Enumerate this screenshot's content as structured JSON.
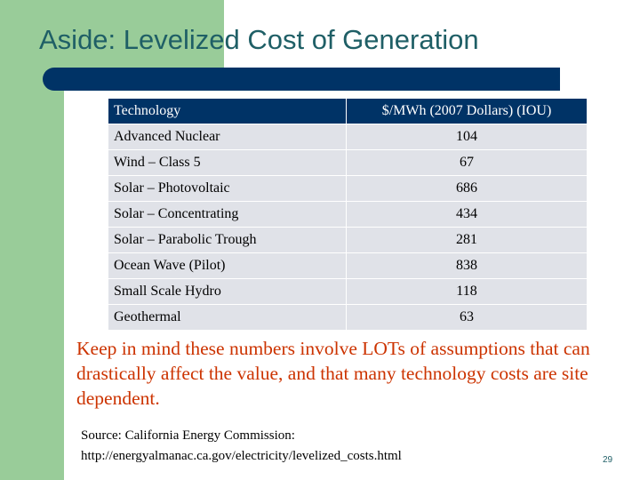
{
  "slide": {
    "title": "Aside: Levelized Cost of Generation",
    "page_number": "29"
  },
  "table": {
    "headers": [
      "Technology",
      "$/MWh (2007 Dollars) (IOU)"
    ],
    "rows": [
      [
        "Advanced Nuclear",
        "104"
      ],
      [
        "Wind – Class 5",
        "67"
      ],
      [
        "Solar – Photovoltaic",
        "686"
      ],
      [
        "Solar – Concentrating",
        "434"
      ],
      [
        "Solar – Parabolic Trough",
        "281"
      ],
      [
        "Ocean Wave (Pilot)",
        "838"
      ],
      [
        "Small Scale Hydro",
        "118"
      ],
      [
        "Geothermal",
        "63"
      ]
    ]
  },
  "note": "Keep in mind these numbers involve LOTs of assumptions that can drastically affect the value, and that many technology costs are site dependent.",
  "source": {
    "line1": "Source: California Energy Commission:",
    "line2": "http://energyalmanac.ca.gov/electricity/levelized_costs.html"
  },
  "colors": {
    "accent_green": "#99cc99",
    "header_navy": "#003366",
    "title_teal": "#1f5f66",
    "note_orange": "#cc3300",
    "row_gray": "#e0e2e8"
  }
}
